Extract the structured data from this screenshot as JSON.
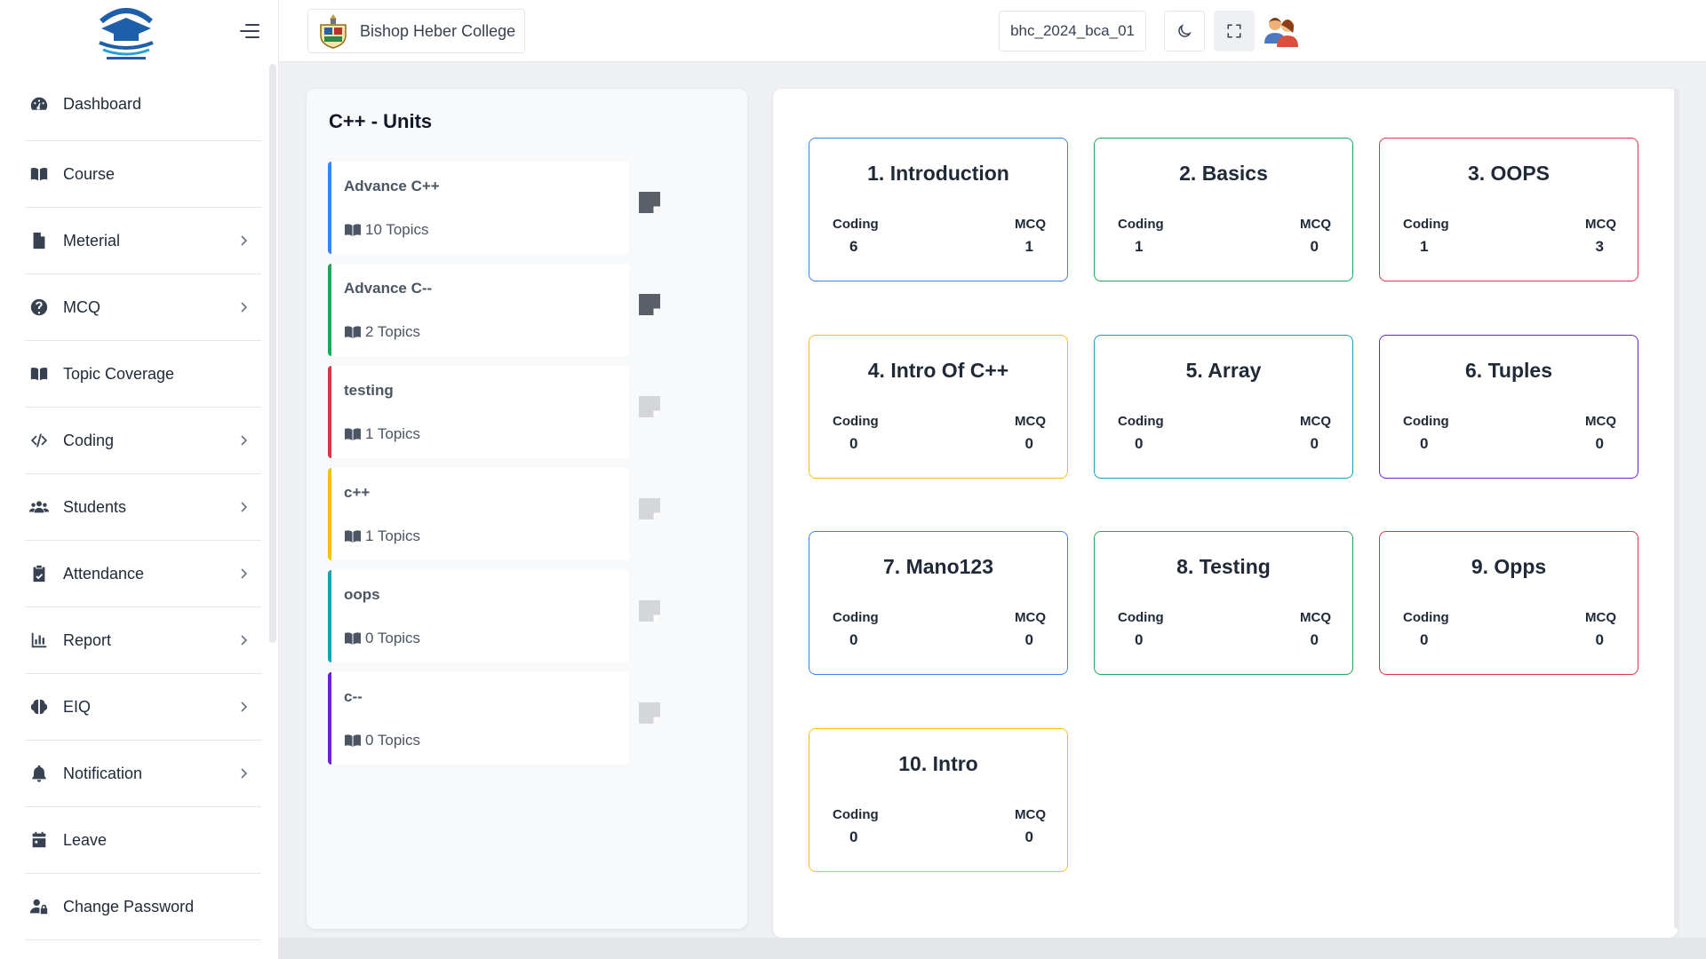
{
  "sidebar": {
    "items": [
      {
        "label": "Dashboard",
        "icon": "gauge-icon",
        "chevron": false
      },
      {
        "label": "Course",
        "icon": "book-open-icon",
        "chevron": false
      },
      {
        "label": "Meterial",
        "icon": "file-icon",
        "chevron": true
      },
      {
        "label": "MCQ",
        "icon": "question-circle-icon",
        "chevron": true
      },
      {
        "label": "Topic Coverage",
        "icon": "book-open-icon",
        "chevron": false
      },
      {
        "label": "Coding",
        "icon": "code-icon",
        "chevron": true
      },
      {
        "label": "Students",
        "icon": "users-icon",
        "chevron": true
      },
      {
        "label": "Attendance",
        "icon": "clipboard-check-icon",
        "chevron": true
      },
      {
        "label": "Report",
        "icon": "bar-chart-icon",
        "chevron": true
      },
      {
        "label": "EIQ",
        "icon": "brain-icon",
        "chevron": true
      },
      {
        "label": "Notification",
        "icon": "bell-icon",
        "chevron": true
      },
      {
        "label": "Leave",
        "icon": "calendar-icon",
        "chevron": false
      },
      {
        "label": "Change Password",
        "icon": "user-lock-icon",
        "chevron": false
      }
    ]
  },
  "header": {
    "college_name": "Bishop Heber College",
    "session": "bhc_2024_bca_01"
  },
  "units": {
    "title": "C++ - Units",
    "items": [
      {
        "name": "Advance C++",
        "topics": "10 Topics",
        "color": "#3b82f6",
        "note_active": true
      },
      {
        "name": "Advance C--",
        "topics": "2 Topics",
        "color": "#22a55a",
        "note_active": true
      },
      {
        "name": "testing",
        "topics": "1 Topics",
        "color": "#dc3545",
        "note_active": false
      },
      {
        "name": "c++",
        "topics": "1 Topics",
        "color": "#f5c211",
        "note_active": false
      },
      {
        "name": "oops",
        "topics": "0 Topics",
        "color": "#17a2b8",
        "note_active": false
      },
      {
        "name": "c--",
        "topics": "0 Topics",
        "color": "#6f1fd6",
        "note_active": false
      }
    ]
  },
  "chapters": {
    "coding_label": "Coding",
    "mcq_label": "MCQ",
    "items": [
      {
        "title": "1. Introduction",
        "coding": "6",
        "mcq": "1",
        "color": "#3b82f6"
      },
      {
        "title": "2. Basics",
        "coding": "1",
        "mcq": "0",
        "color": "#22a55a"
      },
      {
        "title": "3. OOPS",
        "coding": "1",
        "mcq": "3",
        "color": "#dc3545"
      },
      {
        "title": "4. Intro Of C++",
        "coding": "0",
        "mcq": "0",
        "color": "#f5c211"
      },
      {
        "title": "5. Array",
        "coding": "0",
        "mcq": "0",
        "color": "#17a2b8"
      },
      {
        "title": "6. Tuples",
        "coding": "0",
        "mcq": "0",
        "color": "#6f1fd6"
      },
      {
        "title": "7. Mano123",
        "coding": "0",
        "mcq": "0",
        "color": "#3b82f6"
      },
      {
        "title": "8. Testing",
        "coding": "0",
        "mcq": "0",
        "color": "#22a55a"
      },
      {
        "title": "9. Opps",
        "coding": "0",
        "mcq": "0",
        "color": "#dc3545"
      },
      {
        "title": "10. Intro",
        "coding": "0",
        "mcq": "0",
        "color": "#f5c211"
      }
    ]
  }
}
